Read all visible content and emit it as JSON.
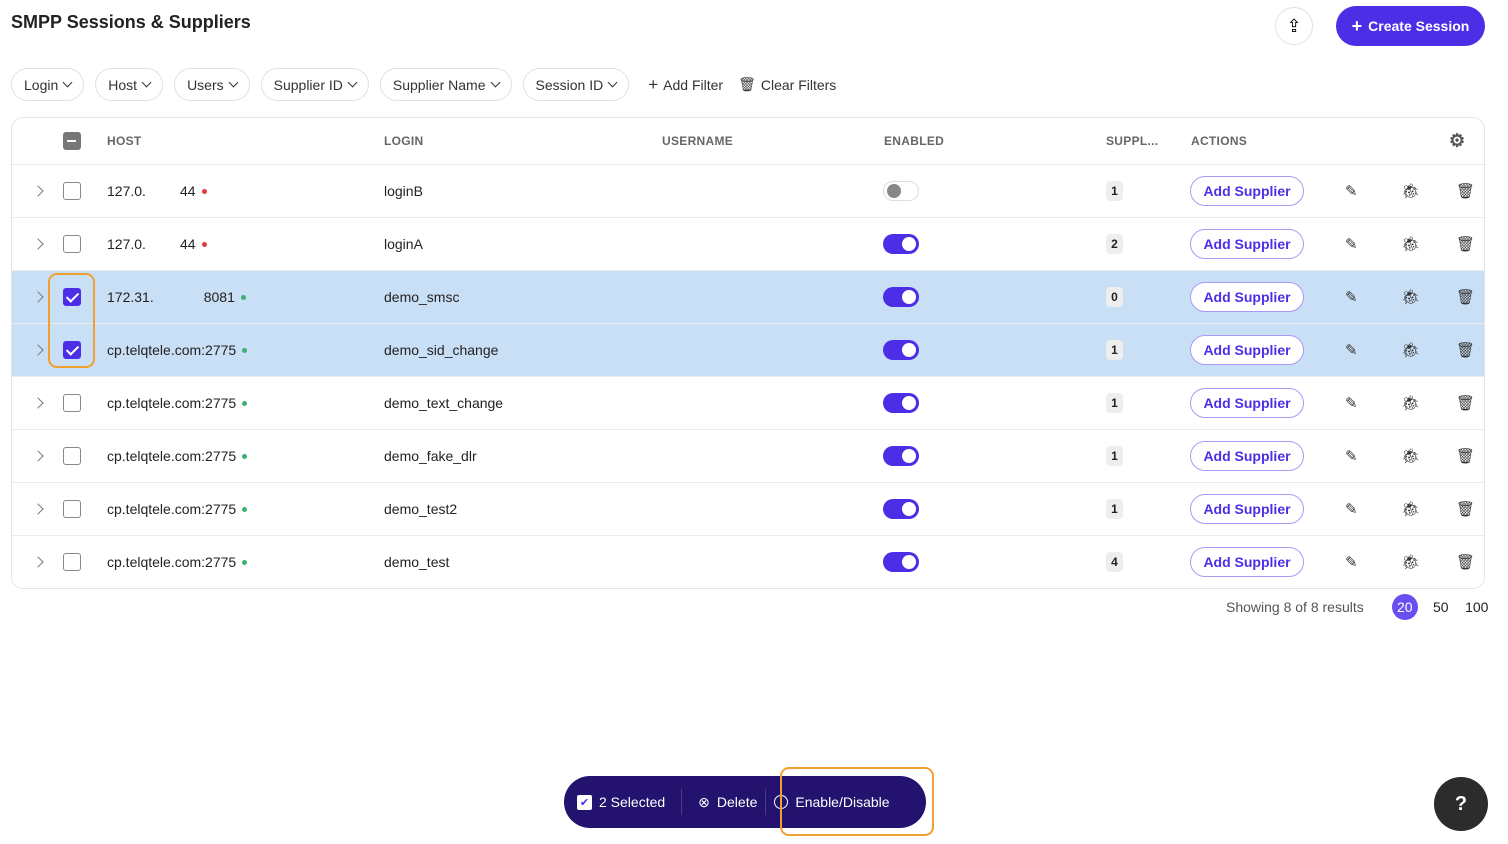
{
  "title": "SMPP Sessions & Suppliers",
  "create_label": "Create Session",
  "filters": [
    "Login",
    "Host",
    "Users",
    "Supplier ID",
    "Supplier Name",
    "Session ID"
  ],
  "add_filter": "Add Filter",
  "clear_filters": "Clear Filters",
  "columns": {
    "host": "HOST",
    "login": "LOGIN",
    "username": "USERNAME",
    "enabled": "ENABLED",
    "suppliers": "SUPPL...",
    "actions": "ACTIONS"
  },
  "rows": [
    {
      "host_a": "127.0.",
      "host_b": "44",
      "status": "#e03b3b",
      "login": "loginB",
      "username": "",
      "enabled": false,
      "suppliers": "1",
      "selected": false
    },
    {
      "host_a": "127.0.",
      "host_b": "44",
      "status": "#e03b3b",
      "login": "loginA",
      "username": "",
      "enabled": true,
      "suppliers": "2",
      "selected": false
    },
    {
      "host_a": "172.31.",
      "host_b": "8081",
      "status": "#3bb273",
      "login": "demo_smsc",
      "username": "",
      "enabled": true,
      "suppliers": "0",
      "selected": true
    },
    {
      "host_a": "cp.telqtele.com:2775",
      "host_b": "",
      "status": "#3bb273",
      "login": "demo_sid_change",
      "username": "",
      "enabled": true,
      "suppliers": "1",
      "selected": true
    },
    {
      "host_a": "cp.telqtele.com:2775",
      "host_b": "",
      "status": "#3bb273",
      "login": "demo_text_change",
      "username": "",
      "enabled": true,
      "suppliers": "1",
      "selected": false
    },
    {
      "host_a": "cp.telqtele.com:2775",
      "host_b": "",
      "status": "#3bb273",
      "login": "demo_fake_dlr",
      "username": "",
      "enabled": true,
      "suppliers": "1",
      "selected": false
    },
    {
      "host_a": "cp.telqtele.com:2775",
      "host_b": "",
      "status": "#3bb273",
      "login": "demo_test2",
      "username": "",
      "enabled": true,
      "suppliers": "1",
      "selected": false
    },
    {
      "host_a": "cp.telqtele.com:2775",
      "host_b": "",
      "status": "#3bb273",
      "login": "demo_test",
      "username": "",
      "enabled": true,
      "suppliers": "4",
      "selected": false
    }
  ],
  "add_supplier_label": "Add Supplier",
  "results_text": "Showing 8 of 8 results",
  "page_sizes": [
    "20",
    "50",
    "100"
  ],
  "current_page_size": "20",
  "bulk": {
    "selected": "2 Selected",
    "delete": "Delete",
    "toggle": "Enable/Disable"
  },
  "help": "?",
  "accent": "#4b2ee6"
}
